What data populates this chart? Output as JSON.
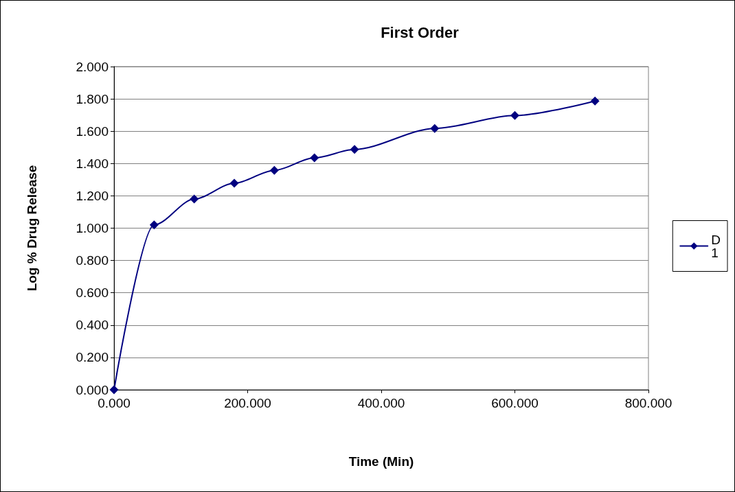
{
  "chart_data": {
    "type": "line",
    "title": "First Order",
    "xlabel": "Time (Min)",
    "ylabel": "Log % Drug Release",
    "x": [
      0,
      60,
      120,
      180,
      240,
      300,
      360,
      480,
      600,
      720
    ],
    "series": [
      {
        "name": "D1",
        "color": "#000080",
        "values": [
          0,
          1.02,
          1.18,
          1.278,
          1.358,
          1.435,
          1.487,
          1.617,
          1.697,
          1.787
        ]
      }
    ],
    "xlim": [
      0,
      800
    ],
    "xticks": [
      {
        "value": 0,
        "label": "0.000"
      },
      {
        "value": 200,
        "label": "200.000"
      },
      {
        "value": 400,
        "label": "400.000"
      },
      {
        "value": 600,
        "label": "600.000"
      },
      {
        "value": 800,
        "label": "800.000"
      }
    ],
    "ylim": [
      0,
      2
    ],
    "yticks": [
      {
        "value": 0,
        "label": "0.000"
      },
      {
        "value": 0.2,
        "label": "0.200"
      },
      {
        "value": 0.4,
        "label": "0.400"
      },
      {
        "value": 0.6,
        "label": "0.600"
      },
      {
        "value": 0.8,
        "label": "0.800"
      },
      {
        "value": 1,
        "label": "1.000"
      },
      {
        "value": 1.2,
        "label": "1.200"
      },
      {
        "value": 1.4,
        "label": "1.400"
      },
      {
        "value": 1.6,
        "label": "1.600"
      },
      {
        "value": 1.8,
        "label": "1.800"
      },
      {
        "value": 2,
        "label": "2.000"
      }
    ],
    "grid": "y",
    "legend": "right",
    "marker": "diamond",
    "line_style": "solid"
  }
}
